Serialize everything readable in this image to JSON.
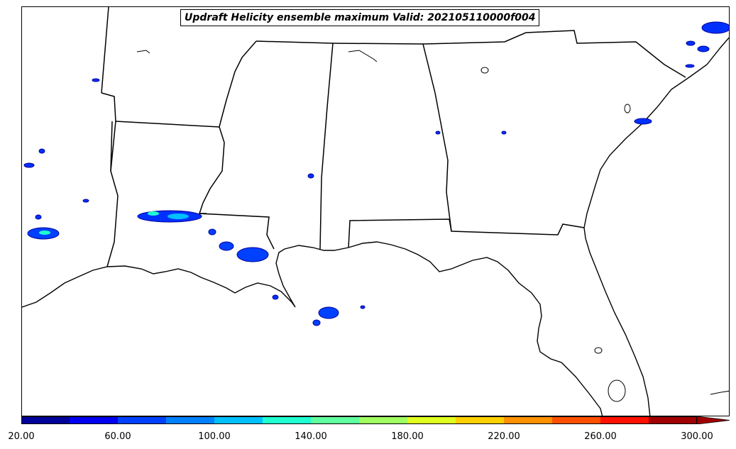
{
  "title": "Updraft Helicity ensemble maximum Valid: 202105110000f004",
  "colorbar": {
    "colors": [
      "#00009a",
      "#0000f0",
      "#0040ff",
      "#0080ff",
      "#00c0ff",
      "#20ffd0",
      "#60ffa0",
      "#a0ff60",
      "#e0ff20",
      "#ffd000",
      "#ff9000",
      "#ff5000",
      "#ff1000",
      "#a00000"
    ],
    "tick_labels": [
      "20.00",
      "60.00",
      "100.00",
      "140.00",
      "180.00",
      "220.00",
      "260.00",
      "300.00"
    ],
    "extend": "max"
  },
  "map": {
    "region": "US Gulf Coast / Southeast",
    "land_color": "#ffffff",
    "border_color": "#000000"
  }
}
